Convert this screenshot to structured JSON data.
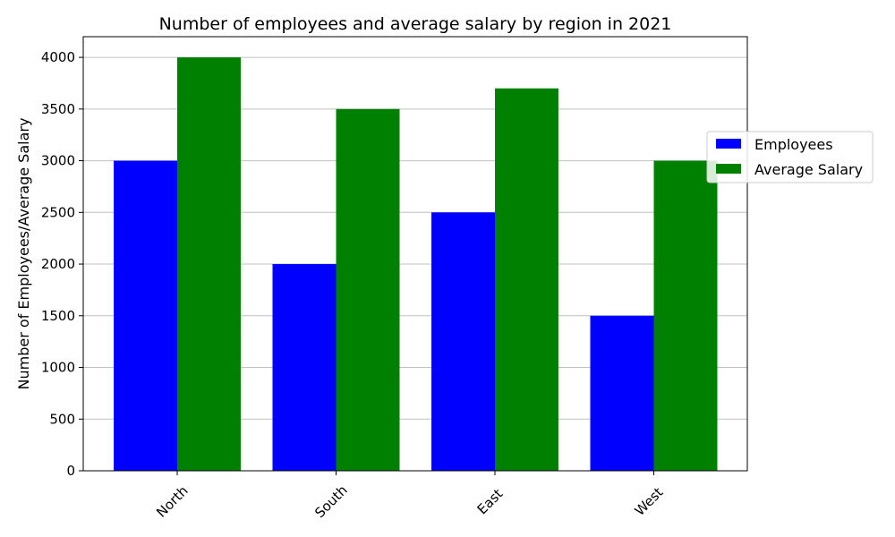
{
  "chart_data": {
    "type": "bar",
    "title": "Number of employees and average salary by region in 2021",
    "xlabel": "",
    "ylabel": "Number of Employees/Average Salary",
    "categories": [
      "North",
      "South",
      "East",
      "West"
    ],
    "series": [
      {
        "name": "Employees",
        "values": [
          3000,
          2000,
          2500,
          1500
        ],
        "color": "#0000ff"
      },
      {
        "name": "Average Salary",
        "values": [
          4000,
          3500,
          3700,
          3000
        ],
        "color": "#008000"
      }
    ],
    "ylim": [
      0,
      4200
    ],
    "yticks": [
      0,
      500,
      1000,
      1500,
      2000,
      2500,
      3000,
      3500,
      4000
    ],
    "grid": "y",
    "legend": "right"
  }
}
